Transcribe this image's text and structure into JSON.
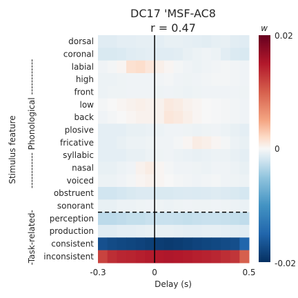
{
  "chart_data": {
    "type": "heatmap",
    "title_line1": "DC17 'MSF-AC8",
    "title_line2": "r = 0.47",
    "xlabel": "Delay (s)",
    "ylabel": "Stimulus feature",
    "x_range": [
      -0.3,
      0.5
    ],
    "x_ticks": [
      {
        "value": -0.3,
        "label": "-0.3"
      },
      {
        "value": 0,
        "label": "0"
      },
      {
        "value": 0.5,
        "label": "0.5"
      }
    ],
    "n_time_bins": 16,
    "zero_line_at": 0,
    "colorbar": {
      "label": "w",
      "min": -0.02,
      "max": 0.02,
      "tick_labels": [
        "0.02",
        "0",
        "-0.02"
      ],
      "colormap": "RdBu_r"
    },
    "group_labels": [
      {
        "label": "------------ Phonological ------------",
        "rows": [
          0,
          13
        ]
      },
      {
        "label": "-Task-related-",
        "rows": [
          14,
          17
        ]
      }
    ],
    "group_separator_after_row": 13,
    "rows": [
      {
        "feature": "dorsal",
        "values": [
          -0.0012,
          -0.0012,
          -0.001,
          -0.001,
          -0.0009,
          -0.0009,
          -0.001,
          -0.0008,
          -0.0008,
          -0.0009,
          -0.001,
          -0.0011,
          -0.0009,
          -0.0008,
          -0.0011,
          -0.0012
        ]
      },
      {
        "feature": "coronal",
        "values": [
          -0.0016,
          -0.0016,
          -0.0015,
          -0.0012,
          -0.0011,
          -0.001,
          -0.0012,
          -0.0012,
          -0.0011,
          -0.0008,
          -0.0006,
          -0.0004,
          -0.0006,
          -0.0011,
          -0.0015,
          -0.0016
        ]
      },
      {
        "feature": "labial",
        "values": [
          -0.0004,
          -0.0002,
          0.0002,
          0.0016,
          0.0018,
          0.0012,
          0.0006,
          0.0002,
          -0.0002,
          -0.0004,
          -0.0006,
          -0.0004,
          -0.0003,
          -0.0002,
          -0.0003,
          -0.0004
        ]
      },
      {
        "feature": "high",
        "values": [
          -0.0006,
          -0.0006,
          -0.0005,
          -0.0004,
          -0.0004,
          -0.0004,
          -0.0003,
          -0.0002,
          -0.0004,
          -0.0005,
          -0.0004,
          -0.0003,
          -0.0002,
          -0.0002,
          -0.0003,
          -0.0004
        ]
      },
      {
        "feature": "front",
        "values": [
          -0.0006,
          -0.0005,
          -0.0005,
          -0.0004,
          -0.0004,
          -0.0004,
          -0.0005,
          -0.0004,
          -0.0005,
          -0.0006,
          -0.0005,
          -0.0004,
          -0.0004,
          -0.0004,
          -0.0004,
          -0.0005
        ]
      },
      {
        "feature": "low",
        "values": [
          -0.0002,
          0.0,
          0.0002,
          0.0004,
          0.0006,
          0.0004,
          0.0004,
          0.001,
          0.0008,
          0.0004,
          0.0002,
          0.0,
          -0.0001,
          -0.0002,
          -0.0003,
          -0.0004
        ]
      },
      {
        "feature": "back",
        "values": [
          -0.0004,
          -0.0002,
          0.0,
          0.0002,
          0.0004,
          0.0004,
          0.0004,
          0.0012,
          0.001,
          0.0006,
          0.0002,
          0.0,
          -0.0001,
          -0.0002,
          -0.0003,
          -0.0004
        ]
      },
      {
        "feature": "plosive",
        "values": [
          -0.001,
          -0.001,
          -0.001,
          -0.0008,
          -0.0008,
          -0.0007,
          -0.0006,
          -0.0004,
          -0.0004,
          -0.0005,
          -0.0006,
          -0.0005,
          -0.0004,
          -0.0006,
          -0.0008,
          -0.001
        ]
      },
      {
        "feature": "fricative",
        "values": [
          -0.001,
          -0.001,
          -0.0008,
          -0.0006,
          -0.0006,
          -0.0005,
          -0.0004,
          -0.0004,
          -0.0002,
          0.0002,
          0.0008,
          0.0006,
          0.0002,
          -0.0002,
          -0.0006,
          -0.0008
        ]
      },
      {
        "feature": "syllabic",
        "values": [
          -0.001,
          -0.001,
          -0.001,
          -0.0008,
          -0.0008,
          -0.0006,
          -0.0005,
          -0.0004,
          -0.0006,
          -0.0007,
          -0.0008,
          -0.0007,
          -0.0006,
          -0.0006,
          -0.0008,
          -0.001
        ]
      },
      {
        "feature": "nasal",
        "values": [
          -0.0008,
          -0.0008,
          -0.0006,
          -0.0004,
          0.0004,
          0.0008,
          0.0002,
          -0.0002,
          -0.0004,
          -0.0004,
          -0.0005,
          -0.0006,
          -0.0004,
          -0.0004,
          -0.0006,
          -0.0008
        ]
      },
      {
        "feature": "voiced",
        "values": [
          -0.0006,
          -0.0006,
          -0.0004,
          -0.0002,
          0.0002,
          0.0004,
          0.0002,
          0.0,
          -0.0002,
          -0.0003,
          -0.0004,
          -0.0003,
          -0.0002,
          -0.0004,
          -0.0005,
          -0.0006
        ]
      },
      {
        "feature": "obstruent",
        "values": [
          -0.002,
          -0.002,
          -0.0018,
          -0.0016,
          -0.0014,
          -0.0014,
          -0.0016,
          -0.0016,
          -0.0015,
          -0.0014,
          -0.0015,
          -0.0014,
          -0.0013,
          -0.0014,
          -0.0016,
          -0.0018
        ]
      },
      {
        "feature": "sonorant",
        "values": [
          -0.0008,
          -0.0008,
          -0.0006,
          -0.0006,
          -0.0005,
          -0.0004,
          -0.0005,
          -0.0006,
          -0.0005,
          -0.0004,
          -0.0005,
          -0.0005,
          -0.0004,
          -0.0005,
          -0.0006,
          -0.0007
        ]
      },
      {
        "feature": "perception",
        "values": [
          -0.003,
          -0.003,
          -0.0028,
          -0.0026,
          -0.0026,
          -0.0024,
          -0.0024,
          -0.0024,
          -0.0025,
          -0.0026,
          -0.0025,
          -0.0024,
          -0.0024,
          -0.0025,
          -0.0026,
          -0.0028
        ]
      },
      {
        "feature": "production",
        "values": [
          -0.0012,
          -0.0012,
          -0.001,
          -0.001,
          -0.0009,
          -0.0008,
          -0.0008,
          -0.0008,
          -0.0009,
          -0.001,
          -0.001,
          -0.0009,
          -0.0009,
          -0.001,
          -0.0011,
          -0.0012
        ]
      },
      {
        "feature": "consistent",
        "values": [
          -0.017,
          -0.0175,
          -0.0178,
          -0.018,
          -0.0182,
          -0.0185,
          -0.0188,
          -0.019,
          -0.0188,
          -0.0185,
          -0.0182,
          -0.018,
          -0.0178,
          -0.0175,
          -0.0172,
          -0.015
        ]
      },
      {
        "feature": "inconsistent",
        "values": [
          0.012,
          0.0135,
          0.014,
          0.0142,
          0.0145,
          0.0148,
          0.015,
          0.0152,
          0.015,
          0.0148,
          0.0145,
          0.0143,
          0.014,
          0.0135,
          0.013,
          0.01
        ]
      }
    ]
  }
}
